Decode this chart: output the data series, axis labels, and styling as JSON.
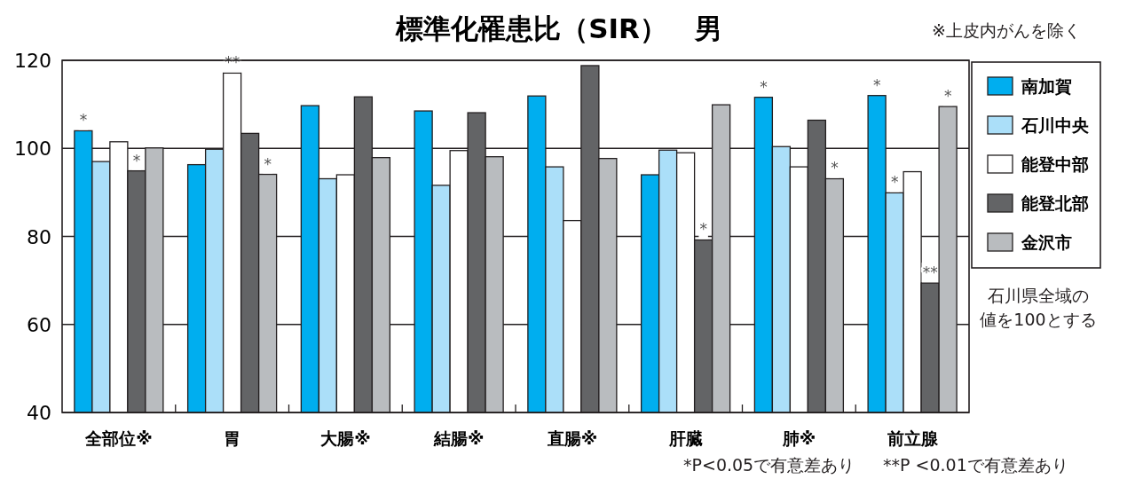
{
  "chart_data": {
    "type": "bar",
    "title": "標準化罹患比（SIR）　男",
    "categories": [
      "全部位※",
      "胃",
      "大腸※",
      "結腸※",
      "直腸※",
      "肝臓",
      "肺※",
      "前立腺"
    ],
    "series": [
      {
        "name": "南加賀",
        "color": "#00aeef",
        "values": [
          104.0,
          96.3,
          109.7,
          108.5,
          111.9,
          94.0,
          111.6,
          112.0
        ],
        "value_labels": [
          "*",
          null,
          null,
          null,
          null,
          null,
          "*",
          "*"
        ]
      },
      {
        "name": "石川中央",
        "color": "#abdff9",
        "values": [
          97.0,
          99.8,
          93.1,
          91.6,
          95.8,
          99.6,
          100.4,
          89.9
        ],
        "value_labels": [
          null,
          null,
          null,
          null,
          null,
          null,
          null,
          "*"
        ]
      },
      {
        "name": "能登中部",
        "color": "#ffffff",
        "values": [
          101.5,
          117.1,
          94.0,
          99.5,
          83.6,
          99.0,
          95.8,
          94.7
        ],
        "value_labels": [
          null,
          "**",
          null,
          null,
          null,
          null,
          null,
          null
        ]
      },
      {
        "name": "能登北部",
        "color": "#636466",
        "values": [
          94.9,
          103.4,
          111.7,
          108.1,
          118.8,
          79.2,
          106.4,
          69.4
        ],
        "value_labels": [
          "*",
          null,
          null,
          null,
          null,
          "*",
          null,
          "**"
        ]
      },
      {
        "name": "金沢市",
        "color": "#b9bcbf",
        "values": [
          100.1,
          94.1,
          97.9,
          98.1,
          97.7,
          109.9,
          93.1,
          109.5
        ],
        "value_labels": [
          null,
          "*",
          null,
          null,
          null,
          null,
          "*",
          "*"
        ]
      }
    ],
    "ylim": [
      40,
      120
    ],
    "yticks": [
      40,
      60,
      80,
      100,
      120
    ],
    "grid": "y",
    "legend": "right",
    "annotations": [
      "※上皮内がんを除く",
      "石川県全域の値を100とする",
      "*P<0.05で有意差あり",
      "**P <0.01で有意差あり"
    ]
  }
}
